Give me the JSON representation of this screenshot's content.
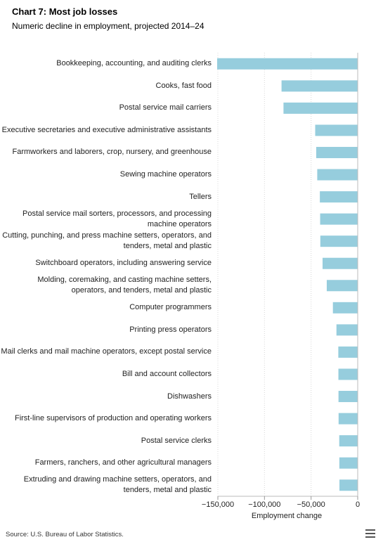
{
  "header": {
    "title": "Chart 7: Most job losses",
    "subtitle": "Numeric decline in employment, projected 2014–24"
  },
  "footer": {
    "source": "Source: U.S. Bureau of Labor Statistics."
  },
  "icons": {
    "menu": "hamburger-menu-icon"
  },
  "chart_data": {
    "type": "bar",
    "orientation": "horizontal",
    "categories": [
      "Bookkeeping, accounting, and auditing clerks",
      "Cooks, fast food",
      "Postal service mail carriers",
      "Executive secretaries and executive administrative assistants",
      "Farmworkers and laborers, crop, nursery, and greenhouse",
      "Sewing machine operators",
      "Tellers",
      "Postal service mail sorters, processors, and processing machine operators",
      "Cutting, punching, and press machine setters, operators, and tenders, metal and plastic",
      "Switchboard operators, including answering service",
      "Molding, coremaking, and casting machine setters, operators, and tenders, metal and plastic",
      "Computer programmers",
      "Printing press operators",
      "Mail clerks and mail machine operators, except postal service",
      "Bill and account collectors",
      "Dishwashers",
      "First-line supervisors of production and operating workers",
      "Postal service clerks",
      "Farmers, ranchers, and other agricultural managers",
      "Extruding and drawing machine setters, operators, and tenders, metal and plastic"
    ],
    "values": [
      -152500,
      -81700,
      -79600,
      -45600,
      -44500,
      -43400,
      -40600,
      -40300,
      -40100,
      -37700,
      -33200,
      -26600,
      -22800,
      -20800,
      -20700,
      -20600,
      -20500,
      -19800,
      -19700,
      -19600
    ],
    "xlabel": "Employment change",
    "xlim": [
      -150000,
      0
    ],
    "xticks": [
      -150000,
      -100000,
      -50000,
      0
    ],
    "xtick_labels": [
      "−150,000",
      "−100,000",
      "−50,000",
      "0"
    ],
    "grid": true,
    "bar_color": "#96cddd"
  }
}
